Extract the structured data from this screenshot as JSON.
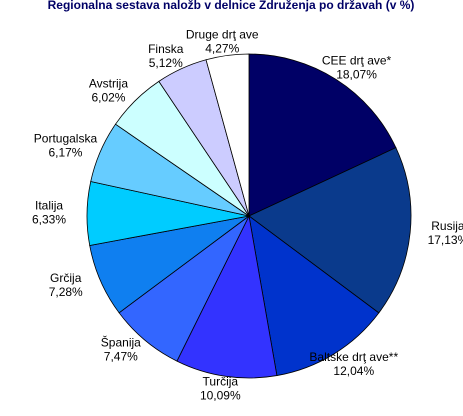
{
  "chart_data": {
    "type": "pie",
    "title": "Regionalna sestava naložb v delnice Združenja po državah (v %)",
    "categories": [
      "CEE drţ ave*",
      "Rusija",
      "Baltske drţ ave**",
      "Turčija",
      "Španija",
      "Grčija",
      "Italija",
      "Portugalska",
      "Avstrija",
      "Finska",
      "Druge drţ ave"
    ],
    "values": [
      18.07,
      17.13,
      12.04,
      10.09,
      7.47,
      7.28,
      6.33,
      6.17,
      6.02,
      5.12,
      4.27
    ],
    "value_labels": [
      "18,07%",
      "17,13%",
      "12,04%",
      "10,09%",
      "7,47%",
      "7,28%",
      "6,33%",
      "6,17%",
      "6,02%",
      "5,12%",
      "4,27%"
    ],
    "colors": [
      "#000066",
      "#0a3a8c",
      "#0033cc",
      "#3333ff",
      "#3366ff",
      "#0f7ff0",
      "#00ccff",
      "#66ccff",
      "#ccffff",
      "#ccccff",
      "#ffffff"
    ]
  }
}
